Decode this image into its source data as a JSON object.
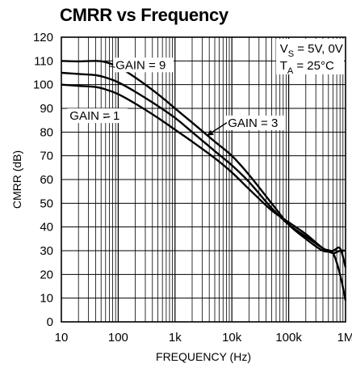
{
  "chart_data": {
    "type": "line",
    "title": "CMRR vs Frequency",
    "xlabel": "FREQUENCY (Hz)",
    "ylabel": "CMRR (dB)",
    "xscale": "log",
    "xlim": [
      10,
      1000000
    ],
    "ylim": [
      0,
      120
    ],
    "grid": true,
    "x_tick_labels": [
      "10",
      "100",
      "1k",
      "10k",
      "100k",
      "1M"
    ],
    "y_tick_labels": [
      "0",
      "10",
      "20",
      "30",
      "40",
      "50",
      "60",
      "70",
      "80",
      "90",
      "100",
      "110",
      "120"
    ],
    "conditions": {
      "supply_prefix": "V",
      "supply_sub": "S",
      "supply_value": " = 5V, 0V",
      "temp_prefix": "T",
      "temp_sub": "A",
      "temp_value": " = 25°C"
    },
    "series": [
      {
        "name": "GAIN = 9",
        "x": [
          10,
          20,
          40,
          60,
          100,
          200,
          500,
          1000,
          2000,
          5000,
          10000,
          20000,
          50000,
          100000,
          200000,
          400000,
          600000,
          800000,
          1000000
        ],
        "y": [
          110,
          109.8,
          110,
          109.5,
          107.5,
          103,
          96,
          90,
          84,
          76,
          70,
          62,
          50,
          41,
          35,
          30,
          30,
          31,
          23
        ]
      },
      {
        "name": "GAIN = 3",
        "x": [
          10,
          20,
          40,
          60,
          100,
          200,
          500,
          1000,
          2000,
          5000,
          10000,
          20000,
          50000,
          100000,
          200000,
          400000,
          600000,
          800000,
          1000000
        ],
        "y": [
          105,
          104.5,
          104,
          103,
          101,
          97,
          91,
          86,
          80,
          72,
          66,
          59,
          48,
          41,
          36,
          31,
          29,
          30,
          30
        ]
      },
      {
        "name": "GAIN = 1",
        "x": [
          10,
          20,
          40,
          60,
          100,
          200,
          500,
          1000,
          2000,
          5000,
          10000,
          20000,
          50000,
          100000,
          200000,
          400000,
          600000,
          800000,
          1000000
        ],
        "y": [
          100,
          99.5,
          99,
          98,
          96,
          92,
          86,
          81,
          76,
          69,
          63,
          56,
          47,
          42,
          37,
          31,
          29,
          20,
          9
        ]
      }
    ]
  }
}
